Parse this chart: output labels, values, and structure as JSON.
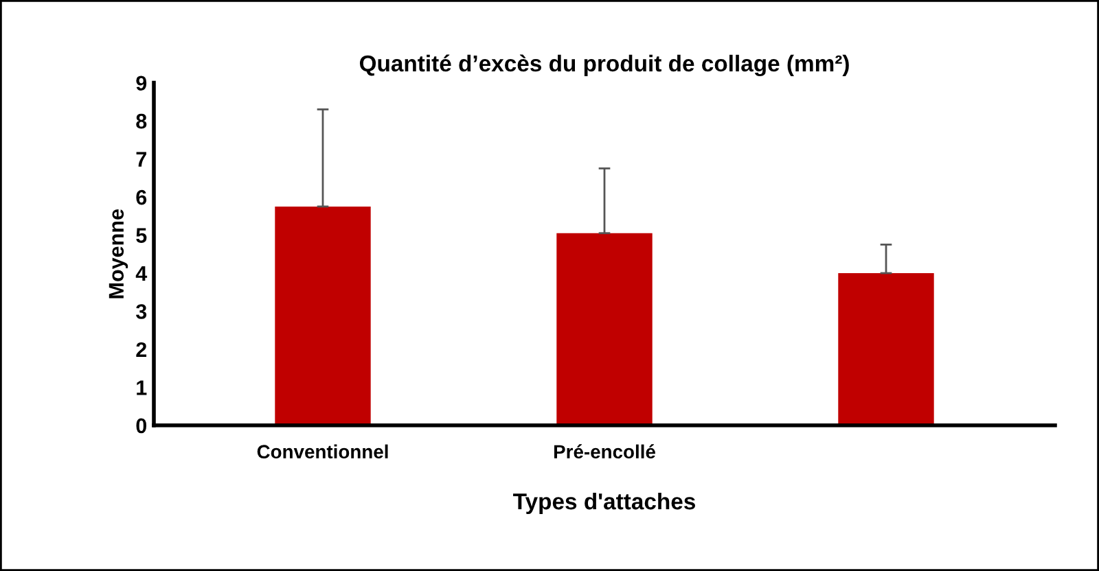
{
  "chart_data": {
    "type": "bar",
    "title": "Quantité d’excès du produit de collage (mm²)",
    "xlabel": "Types d'attaches",
    "ylabel": "Moyenne",
    "categories": [
      "Conventionnel",
      "Pré-encollé",
      null
    ],
    "values": [
      5.75,
      5.05,
      4.0
    ],
    "errors": [
      [
        5.75,
        8.3
      ],
      [
        5.05,
        6.75
      ],
      [
        4.0,
        4.75
      ]
    ],
    "color": "#c00000",
    "ylim": [
      0,
      9
    ],
    "yticks": [
      0,
      1,
      2,
      3,
      4,
      5,
      6,
      7,
      8,
      9
    ],
    "grid": false,
    "legend": false
  }
}
